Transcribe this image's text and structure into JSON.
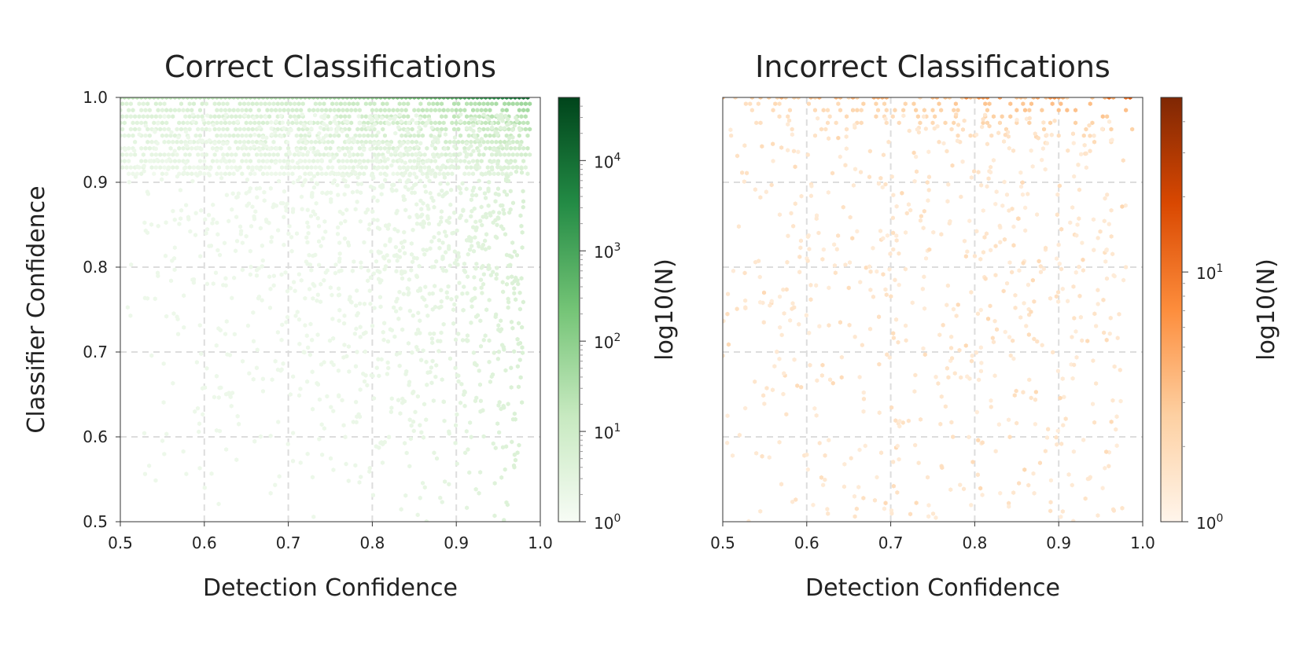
{
  "chart_data": [
    {
      "type": "hexbin",
      "title": "Correct Classifications",
      "xlabel": "Detection Confidence",
      "ylabel": "Classifier Confidence",
      "xlim": [
        0.5,
        1.0
      ],
      "ylim": [
        0.5,
        1.0
      ],
      "xticks": [
        "0.5",
        "0.6",
        "0.7",
        "0.8",
        "0.9",
        "1.0"
      ],
      "yticks": [
        "0.5",
        "0.6",
        "0.7",
        "0.8",
        "0.9",
        "1.0"
      ],
      "grid": true,
      "colormap": "Greens",
      "colorscale": "log",
      "colorbar": {
        "label": "log10(N)",
        "range": [
          1,
          50000
        ],
        "ticks": [
          {
            "base": "10",
            "exp": "0",
            "value": 1
          },
          {
            "base": "10",
            "exp": "1",
            "value": 10
          },
          {
            "base": "10",
            "exp": "2",
            "value": 100
          },
          {
            "base": "10",
            "exp": "3",
            "value": 1000
          },
          {
            "base": "10",
            "exp": "4",
            "value": 10000
          }
        ]
      },
      "colors": {
        "low": "#f7fcf5",
        "mid": "#74c476",
        "high": "#00441b"
      },
      "density_description": "Dense band at classifier confidence 1.0 across all detection confidences, heaviest near detection 0.9-0.98; sparse points elsewhere, increasing toward detection 0.95."
    },
    {
      "type": "hexbin",
      "title": "Incorrect Classifications",
      "xlabel": "Detection Confidence",
      "ylabel": "",
      "xlim": [
        0.5,
        1.0
      ],
      "ylim": [
        0.5,
        1.0
      ],
      "xticks": [
        "0.5",
        "0.6",
        "0.7",
        "0.8",
        "0.9",
        "1.0"
      ],
      "grid": true,
      "colormap": "Oranges",
      "colorscale": "log",
      "colorbar": {
        "label": "log10(N)",
        "range": [
          1,
          50
        ],
        "ticks": [
          {
            "base": "10",
            "exp": "0",
            "value": 1
          },
          {
            "base": "10",
            "exp": "1",
            "value": 10
          }
        ]
      },
      "colors": {
        "low": "#fff5eb",
        "mid": "#fd8d3c",
        "high": "#7f2704"
      },
      "density_description": "Band at classifier confidence 1.0 with highest counts near detection 0.85-0.98; scattered low-count points across the whole area."
    }
  ]
}
